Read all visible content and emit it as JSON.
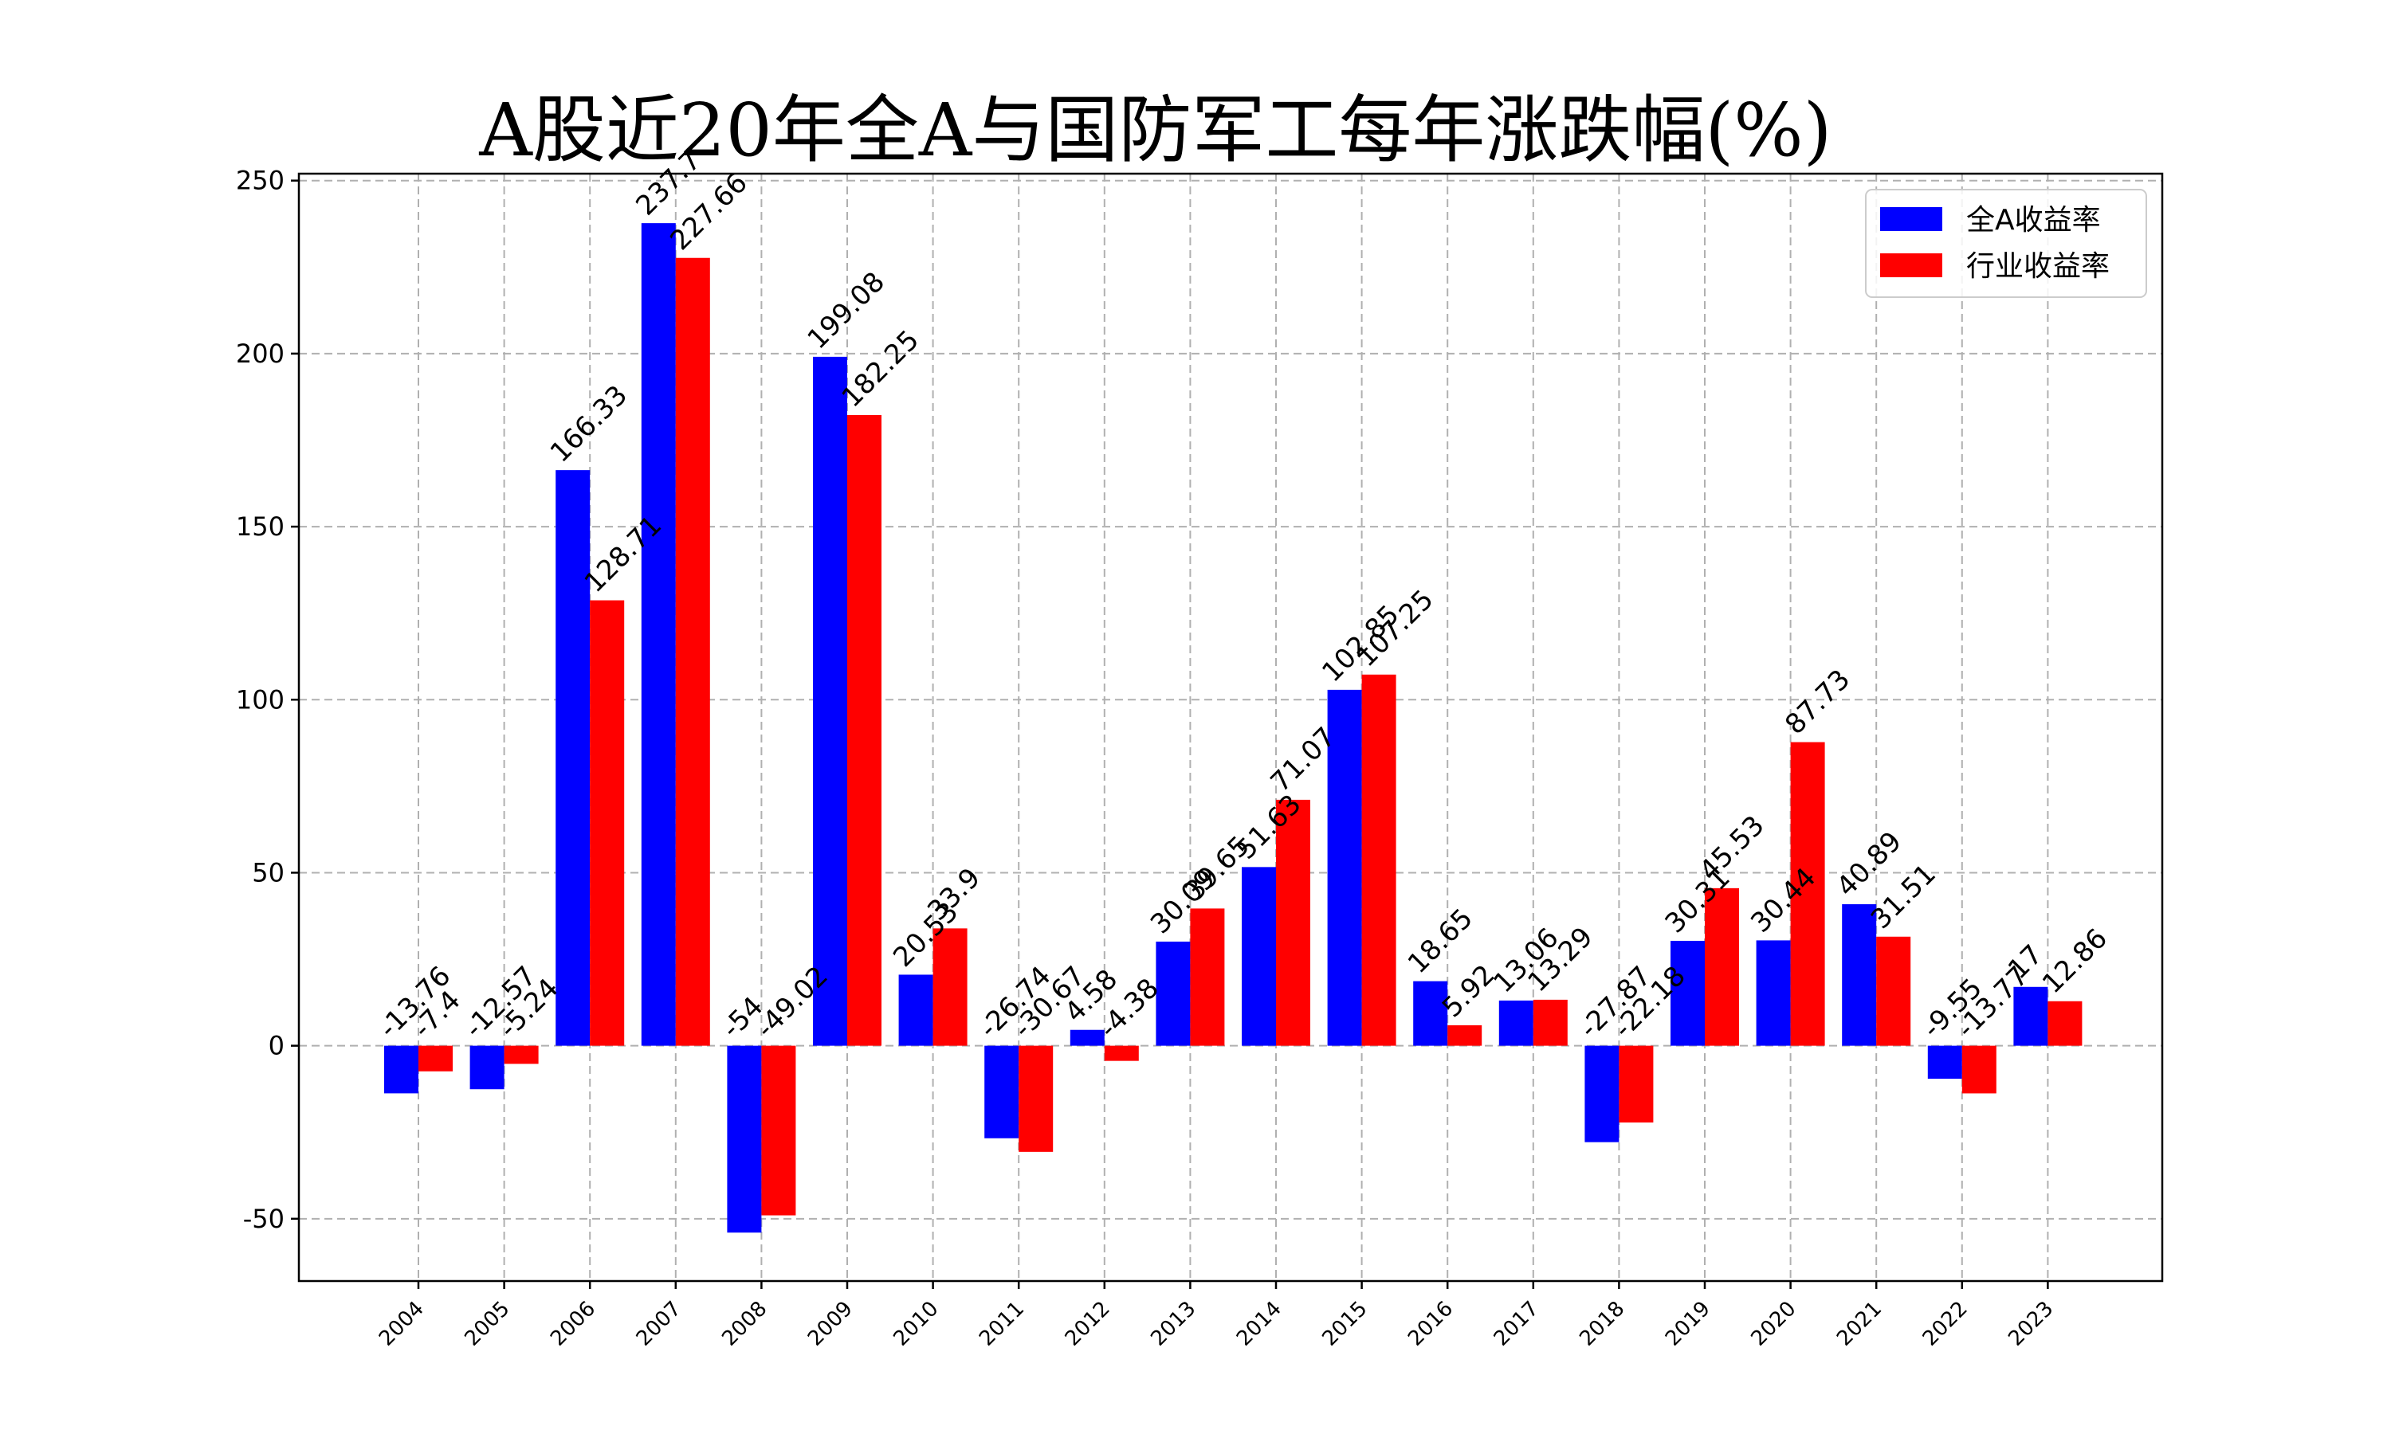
{
  "chart_data": {
    "type": "bar",
    "title": "A股近20年全A与国防军工每年涨跌幅(%)",
    "xlabel": "",
    "ylabel": "",
    "ylim": [
      -68,
      252
    ],
    "yticks": [
      -50,
      0,
      50,
      100,
      150,
      200,
      250
    ],
    "grid": true,
    "legend_position": "top-right",
    "categories": [
      "2004",
      "2005",
      "2006",
      "2007",
      "2008",
      "2009",
      "2010",
      "2011",
      "2012",
      "2013",
      "2014",
      "2015",
      "2016",
      "2017",
      "2018",
      "2019",
      "2020",
      "2021",
      "2022",
      "2023"
    ],
    "series": [
      {
        "name": "全A收益率",
        "color": "#0000ff",
        "values": [
          -13.76,
          -12.57,
          166.33,
          237.7,
          -54.0,
          199.08,
          20.53,
          -26.74,
          4.58,
          30.09,
          51.63,
          102.85,
          18.65,
          13.06,
          -27.87,
          30.31,
          30.44,
          40.89,
          -9.55,
          17.0
        ]
      },
      {
        "name": "行业收益率",
        "color": "#ff0000",
        "values": [
          -7.4,
          -5.24,
          128.71,
          227.66,
          -49.02,
          182.25,
          33.9,
          -30.67,
          -4.38,
          39.65,
          71.07,
          107.25,
          5.92,
          13.29,
          -22.18,
          45.53,
          87.73,
          31.51,
          -13.77,
          12.86
        ]
      }
    ]
  }
}
